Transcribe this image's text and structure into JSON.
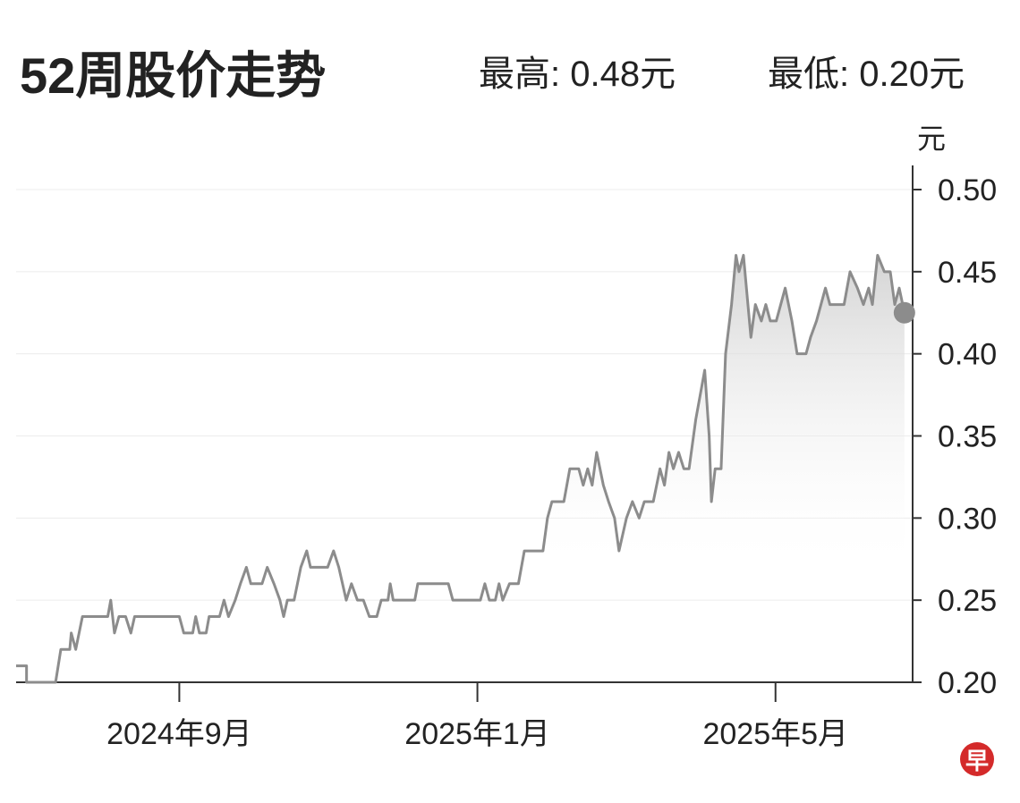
{
  "chart_data": {
    "type": "line",
    "title": "52周股价走势",
    "annotations": [
      "最高: 0.48元",
      "最低: 0.20元"
    ],
    "y_label": "元",
    "logo": "早",
    "x": [
      6.81,
      6.95,
      6.95,
      7.34,
      7.41,
      7.53,
      7.55,
      7.61,
      7.7,
      8.04,
      8.08,
      8.13,
      8.19,
      8.28,
      8.35,
      8.4,
      8.52,
      9.0,
      9.06,
      9.18,
      9.22,
      9.27,
      9.36,
      9.4,
      9.54,
      9.6,
      9.66,
      9.75,
      9.82,
      9.9,
      9.96,
      10.11,
      10.18,
      10.27,
      10.35,
      10.4,
      10.45,
      10.54,
      10.63,
      10.71,
      10.76,
      10.99,
      11.07,
      11.14,
      11.24,
      11.31,
      11.39,
      11.47,
      11.55,
      11.65,
      11.71,
      11.8,
      11.83,
      11.87,
      12.16,
      12.2,
      12.61,
      12.67,
      13.04,
      13.1,
      13.16,
      13.24,
      13.29,
      13.34,
      13.43,
      13.55,
      13.63,
      13.88,
      13.94,
      14.0,
      14.16,
      14.24,
      14.36,
      14.42,
      14.48,
      14.54,
      14.6,
      14.69,
      14.76,
      14.84,
      14.9,
      15.0,
      15.08,
      15.17,
      15.24,
      15.36,
      15.45,
      15.51,
      15.57,
      15.63,
      15.7,
      15.77,
      15.84,
      15.93,
      16.05,
      16.11,
      16.14,
      16.19,
      16.27,
      16.33,
      16.41,
      16.47,
      16.51,
      16.57,
      16.61,
      16.67,
      16.73,
      16.81,
      16.87,
      16.93,
      17.01,
      17.07,
      17.13,
      17.22,
      17.29,
      17.41,
      17.47,
      17.55,
      17.61,
      17.67,
      17.73,
      17.92,
      18.0,
      18.1,
      18.18,
      18.25,
      18.3,
      18.37,
      18.46,
      18.54,
      18.6,
      18.66,
      18.73
    ],
    "series": [
      {
        "name": "股价",
        "color": "#8c8c8c",
        "values": [
          0.21,
          0.21,
          0.2,
          0.2,
          0.22,
          0.22,
          0.23,
          0.22,
          0.24,
          0.24,
          0.25,
          0.23,
          0.24,
          0.24,
          0.23,
          0.24,
          0.24,
          0.24,
          0.23,
          0.23,
          0.24,
          0.23,
          0.23,
          0.24,
          0.24,
          0.25,
          0.24,
          0.25,
          0.26,
          0.27,
          0.26,
          0.26,
          0.27,
          0.26,
          0.25,
          0.24,
          0.25,
          0.25,
          0.27,
          0.28,
          0.27,
          0.27,
          0.28,
          0.27,
          0.25,
          0.26,
          0.25,
          0.25,
          0.24,
          0.24,
          0.25,
          0.25,
          0.26,
          0.25,
          0.25,
          0.26,
          0.26,
          0.25,
          0.25,
          0.26,
          0.25,
          0.25,
          0.26,
          0.25,
          0.26,
          0.26,
          0.28,
          0.28,
          0.3,
          0.31,
          0.31,
          0.33,
          0.33,
          0.32,
          0.33,
          0.32,
          0.34,
          0.32,
          0.31,
          0.3,
          0.28,
          0.3,
          0.31,
          0.3,
          0.31,
          0.31,
          0.33,
          0.32,
          0.34,
          0.33,
          0.34,
          0.33,
          0.33,
          0.36,
          0.39,
          0.35,
          0.31,
          0.33,
          0.33,
          0.4,
          0.43,
          0.46,
          0.45,
          0.46,
          0.44,
          0.41,
          0.43,
          0.42,
          0.43,
          0.42,
          0.42,
          0.43,
          0.44,
          0.42,
          0.4,
          0.4,
          0.41,
          0.42,
          0.43,
          0.44,
          0.43,
          0.43,
          0.45,
          0.44,
          0.43,
          0.44,
          0.43,
          0.46,
          0.45,
          0.45,
          0.43,
          0.44,
          0.425
        ]
      }
    ],
    "xlim": [
      6.81,
      18.84
    ],
    "xticks": [
      {
        "value": 9,
        "label": "2024年9月"
      },
      {
        "value": 13,
        "label": "2025年1月"
      },
      {
        "value": 17,
        "label": "2025年5月"
      }
    ],
    "ylim": [
      0.2,
      0.5
    ],
    "yticks": [
      {
        "value": 0.2,
        "label": "0.20"
      },
      {
        "value": 0.25,
        "label": "0.25"
      },
      {
        "value": 0.3,
        "label": "0.30"
      },
      {
        "value": 0.35,
        "label": "0.35"
      },
      {
        "value": 0.4,
        "label": "0.40"
      },
      {
        "value": 0.45,
        "label": "0.45"
      },
      {
        "value": 0.5,
        "label": "0.50"
      }
    ],
    "grid": true
  }
}
